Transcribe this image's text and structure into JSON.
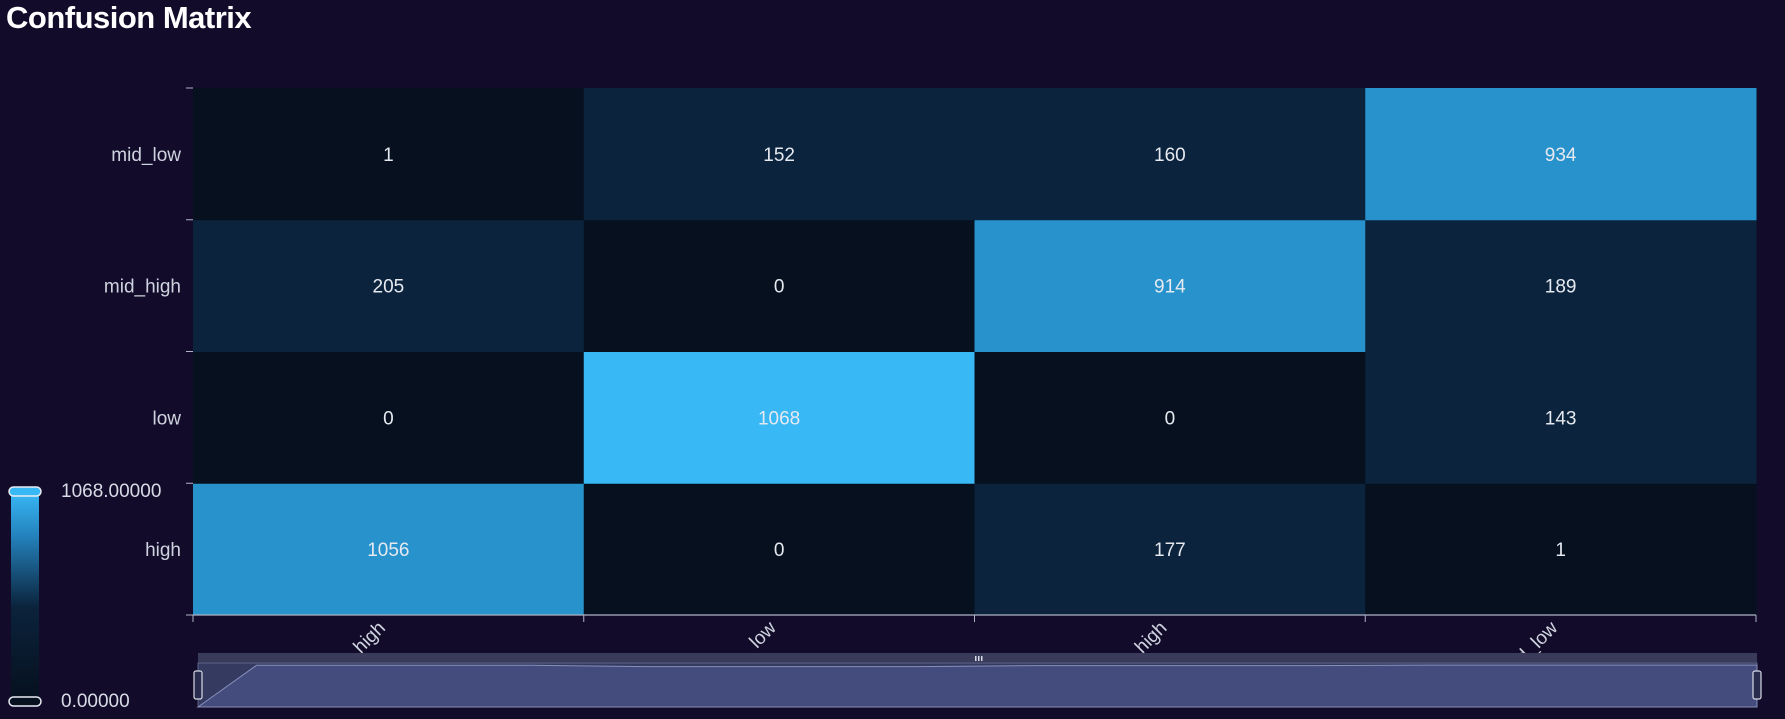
{
  "title": "Confusion Matrix",
  "colors": {
    "background": "#120c2a",
    "low": "#06101e",
    "mid": "#0b233c",
    "high": "#2792cc",
    "max": "#38b8f5"
  },
  "chart_data": {
    "type": "heatmap",
    "title": "Confusion Matrix",
    "x_categories": [
      "high",
      "low",
      "mid_high",
      "mid_low"
    ],
    "y_categories": [
      "high",
      "low",
      "mid_high",
      "mid_low"
    ],
    "values": [
      [
        1056,
        0,
        177,
        1
      ],
      [
        0,
        1068,
        0,
        143
      ],
      [
        205,
        0,
        914,
        189
      ],
      [
        1,
        152,
        160,
        934
      ]
    ],
    "visual_map": {
      "min": 0,
      "max": 1068,
      "min_label": "0.00000",
      "max_label": "1068.00000"
    },
    "data_zoom": {
      "start_percent": 0,
      "end_percent": 100
    }
  }
}
